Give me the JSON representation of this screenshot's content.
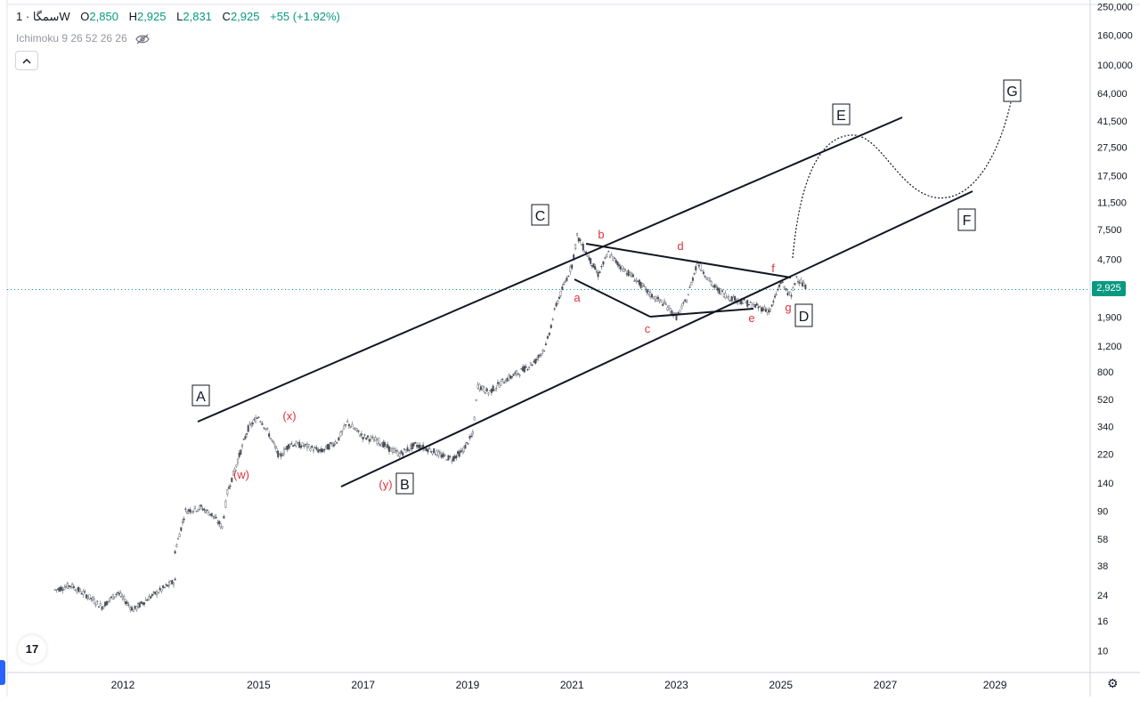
{
  "header": {
    "symbol": "سمگا",
    "interval": "· 1W",
    "open_label": "O",
    "open": "2,850",
    "high_label": "H",
    "high": "2,925",
    "low_label": "L",
    "low": "2,831",
    "close_label": "C",
    "close": "2,925",
    "change": "+55 (+1.92%)"
  },
  "indicator": {
    "label": "Ichimoku 9 26 52 26 26",
    "icon": "eye-crossed-icon"
  },
  "collapse_icon": "chevron-up-icon",
  "logo_text": "17",
  "settings_icon": "gear-icon",
  "last_price_tag": "2,925",
  "colors": {
    "up": "#089981",
    "down": "#f23645",
    "wave_label": "#e0323c",
    "line": "#131722"
  },
  "chart_data": {
    "type": "line",
    "scale": "log",
    "y_ticks": [
      "10",
      "16",
      "24",
      "38",
      "58",
      "90",
      "140",
      "220",
      "340",
      "520",
      "800",
      "1,200",
      "1,900",
      "2,925",
      "4,700",
      "7,500",
      "11,500",
      "17,500",
      "27,500",
      "41,500",
      "64,000",
      "100,000",
      "160,000",
      "250,000"
    ],
    "y_tick_values": [
      10,
      16,
      24,
      38,
      58,
      90,
      140,
      220,
      340,
      520,
      800,
      1200,
      1900,
      2925,
      4700,
      7500,
      11500,
      17500,
      27500,
      41500,
      64000,
      100000,
      160000,
      250000
    ],
    "x_ticks": [
      "2012",
      "2015",
      "2017",
      "2019",
      "2021",
      "2023",
      "2025",
      "2027",
      "2029"
    ],
    "x_tick_values": [
      2012.3,
      2014.9,
      2016.9,
      2018.9,
      2020.9,
      2022.9,
      2024.9,
      2026.9,
      2029.0
    ],
    "ylim": [
      8,
      260000
    ],
    "xlim": [
      2010.8,
      2030.6
    ],
    "last_price": 2925,
    "series": [
      {
        "values": [
          [
            2011.0,
            26
          ],
          [
            2011.3,
            28
          ],
          [
            2011.6,
            24
          ],
          [
            2011.9,
            20
          ],
          [
            2012.2,
            25
          ],
          [
            2012.5,
            19
          ],
          [
            2012.8,
            23
          ],
          [
            2013.1,
            27
          ],
          [
            2013.3,
            30
          ],
          [
            2013.3,
            48
          ],
          [
            2013.5,
            90
          ],
          [
            2013.8,
            95
          ],
          [
            2014.0,
            85
          ],
          [
            2014.2,
            70
          ],
          [
            2014.3,
            120
          ],
          [
            2014.5,
            200
          ],
          [
            2014.7,
            330
          ],
          [
            2014.9,
            400
          ],
          [
            2015.1,
            300
          ],
          [
            2015.3,
            210
          ],
          [
            2015.5,
            260
          ],
          [
            2015.8,
            250
          ],
          [
            2016.1,
            230
          ],
          [
            2016.4,
            270
          ],
          [
            2016.6,
            360
          ],
          [
            2016.9,
            290
          ],
          [
            2017.2,
            270
          ],
          [
            2017.4,
            240
          ],
          [
            2017.6,
            220
          ],
          [
            2017.9,
            255
          ],
          [
            2018.2,
            235
          ],
          [
            2018.4,
            215
          ],
          [
            2018.6,
            205
          ],
          [
            2018.8,
            230
          ],
          [
            2019.0,
            300
          ],
          [
            2019.1,
            650
          ],
          [
            2019.3,
            580
          ],
          [
            2019.6,
            700
          ],
          [
            2019.9,
            800
          ],
          [
            2020.2,
            950
          ],
          [
            2020.4,
            1200
          ],
          [
            2020.6,
            2300
          ],
          [
            2020.8,
            3500
          ],
          [
            2020.9,
            4300
          ],
          [
            2021.0,
            6800
          ],
          [
            2021.2,
            5000
          ],
          [
            2021.4,
            3700
          ],
          [
            2021.6,
            5200
          ],
          [
            2021.8,
            4300
          ],
          [
            2022.1,
            3500
          ],
          [
            2022.4,
            2700
          ],
          [
            2022.7,
            2300
          ],
          [
            2022.9,
            1900
          ],
          [
            2023.1,
            2500
          ],
          [
            2023.3,
            4500
          ],
          [
            2023.6,
            3100
          ],
          [
            2023.9,
            2600
          ],
          [
            2024.2,
            2400
          ],
          [
            2024.5,
            2200
          ],
          [
            2024.7,
            2100
          ],
          [
            2024.9,
            3300
          ],
          [
            2025.1,
            2600
          ],
          [
            2025.2,
            3600
          ],
          [
            2025.4,
            2925
          ]
        ]
      }
    ],
    "annotations": {
      "main_waves": [
        "A",
        "B",
        "C",
        "D",
        "E",
        "F",
        "G"
      ],
      "sub_waves": [
        "(w)",
        "(x)",
        "(y)",
        "a",
        "b",
        "c",
        "d",
        "e",
        "f",
        "g"
      ]
    }
  }
}
